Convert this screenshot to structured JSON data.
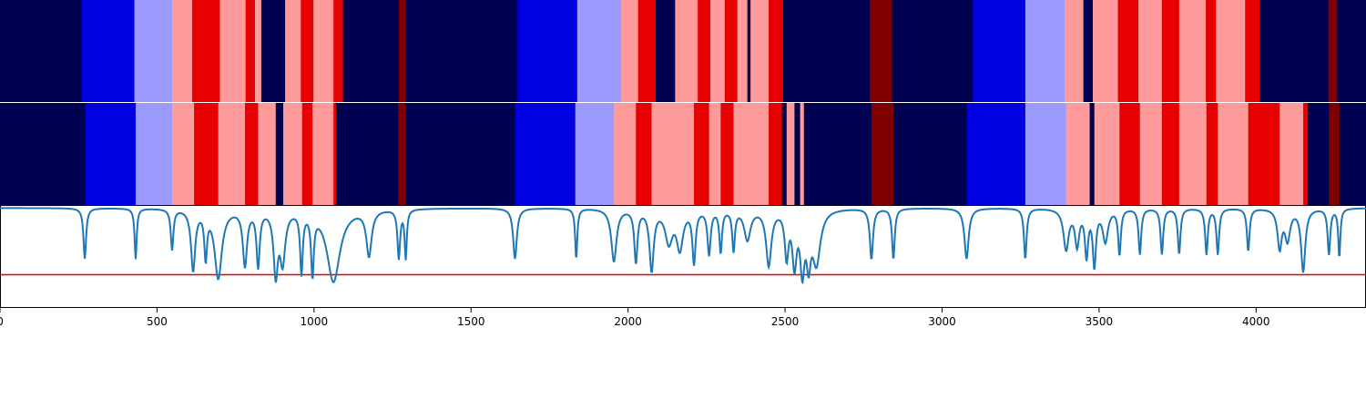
{
  "chart_data": {
    "type": "heatmap",
    "x_range": [
      0,
      4350
    ],
    "x_ticks": [
      0,
      500,
      1000,
      1500,
      2000,
      2500,
      3000,
      3500,
      4000
    ],
    "x_tick_labels": [
      "0",
      "500",
      "1000",
      "1500",
      "2000",
      "2500",
      "3000",
      "3500",
      "4000"
    ],
    "class_colors": [
      "#000050",
      "#0000e0",
      "#9b9bff",
      "#ff9b9b",
      "#e60000",
      "#800000"
    ],
    "rows": [
      {
        "segments": [
          [
            0,
            260,
            0
          ],
          [
            260,
            428,
            1
          ],
          [
            428,
            548,
            2
          ],
          [
            548,
            612,
            3
          ],
          [
            612,
            700,
            4
          ],
          [
            700,
            782,
            3
          ],
          [
            782,
            812,
            4
          ],
          [
            812,
            832,
            3
          ],
          [
            832,
            908,
            0
          ],
          [
            908,
            958,
            3
          ],
          [
            958,
            998,
            4
          ],
          [
            998,
            1062,
            3
          ],
          [
            1062,
            1092,
            4
          ],
          [
            1092,
            1270,
            0
          ],
          [
            1270,
            1292,
            5
          ],
          [
            1292,
            1648,
            0
          ],
          [
            1648,
            1838,
            1
          ],
          [
            1838,
            1978,
            2
          ],
          [
            1978,
            2032,
            3
          ],
          [
            2032,
            2088,
            4
          ],
          [
            2088,
            2150,
            0
          ],
          [
            2150,
            2222,
            3
          ],
          [
            2222,
            2262,
            4
          ],
          [
            2262,
            2308,
            3
          ],
          [
            2308,
            2348,
            4
          ],
          [
            2348,
            2380,
            3
          ],
          [
            2380,
            2390,
            0
          ],
          [
            2390,
            2448,
            3
          ],
          [
            2448,
            2494,
            4
          ],
          [
            2494,
            2770,
            0
          ],
          [
            2770,
            2840,
            5
          ],
          [
            2840,
            3098,
            0
          ],
          [
            3098,
            3265,
            1
          ],
          [
            3265,
            3390,
            2
          ],
          [
            3390,
            3450,
            3
          ],
          [
            3450,
            3480,
            0
          ],
          [
            3480,
            3560,
            3
          ],
          [
            3560,
            3625,
            4
          ],
          [
            3625,
            3700,
            3
          ],
          [
            3700,
            3755,
            4
          ],
          [
            3755,
            3840,
            3
          ],
          [
            3840,
            3872,
            4
          ],
          [
            3872,
            3965,
            3
          ],
          [
            3965,
            4012,
            4
          ],
          [
            4012,
            4230,
            0
          ],
          [
            4230,
            4258,
            5
          ],
          [
            4258,
            4350,
            0
          ]
        ]
      },
      {
        "segments": [
          [
            0,
            272,
            0
          ],
          [
            272,
            432,
            1
          ],
          [
            432,
            548,
            2
          ],
          [
            548,
            618,
            3
          ],
          [
            618,
            695,
            4
          ],
          [
            695,
            780,
            3
          ],
          [
            780,
            822,
            4
          ],
          [
            822,
            878,
            3
          ],
          [
            878,
            902,
            0
          ],
          [
            902,
            962,
            3
          ],
          [
            962,
            995,
            4
          ],
          [
            995,
            1062,
            3
          ],
          [
            1062,
            1070,
            4
          ],
          [
            1070,
            1268,
            0
          ],
          [
            1268,
            1292,
            5
          ],
          [
            1292,
            1640,
            0
          ],
          [
            1640,
            1832,
            1
          ],
          [
            1832,
            1955,
            2
          ],
          [
            1955,
            2025,
            3
          ],
          [
            2025,
            2075,
            4
          ],
          [
            2075,
            2210,
            3
          ],
          [
            2210,
            2258,
            4
          ],
          [
            2258,
            2295,
            3
          ],
          [
            2295,
            2336,
            4
          ],
          [
            2336,
            2448,
            3
          ],
          [
            2448,
            2490,
            4
          ],
          [
            2490,
            2505,
            0
          ],
          [
            2505,
            2530,
            3
          ],
          [
            2530,
            2548,
            0
          ],
          [
            2548,
            2560,
            3
          ],
          [
            2560,
            2775,
            0
          ],
          [
            2775,
            2845,
            5
          ],
          [
            2845,
            3078,
            0
          ],
          [
            3078,
            3265,
            1
          ],
          [
            3265,
            3395,
            2
          ],
          [
            3395,
            3470,
            3
          ],
          [
            3470,
            3485,
            0
          ],
          [
            3485,
            3565,
            3
          ],
          [
            3565,
            3630,
            4
          ],
          [
            3630,
            3700,
            3
          ],
          [
            3700,
            3755,
            4
          ],
          [
            3755,
            3842,
            3
          ],
          [
            3842,
            3878,
            4
          ],
          [
            3878,
            3975,
            3
          ],
          [
            3975,
            4075,
            4
          ],
          [
            4075,
            4150,
            3
          ],
          [
            4150,
            4165,
            4
          ],
          [
            4165,
            4232,
            0
          ],
          [
            4232,
            4265,
            5
          ],
          [
            4265,
            4350,
            0
          ]
        ]
      }
    ],
    "line_series": {
      "color": "#1f77b4",
      "y_range": [
        0,
        1
      ],
      "baseline": 0.98,
      "dips": [
        [
          270,
          0.5,
          5
        ],
        [
          432,
          0.5,
          4
        ],
        [
          548,
          0.4,
          5
        ],
        [
          615,
          0.6,
          8
        ],
        [
          655,
          0.45,
          5
        ],
        [
          695,
          0.68,
          14
        ],
        [
          780,
          0.55,
          8
        ],
        [
          822,
          0.55,
          6
        ],
        [
          878,
          0.62,
          8
        ],
        [
          900,
          0.5,
          10
        ],
        [
          960,
          0.6,
          5
        ],
        [
          995,
          0.6,
          5
        ],
        [
          1062,
          0.72,
          25
        ],
        [
          1175,
          0.45,
          10
        ],
        [
          1270,
          0.48,
          5
        ],
        [
          1292,
          0.48,
          4
        ],
        [
          1640,
          0.5,
          7
        ],
        [
          1835,
          0.5,
          4
        ],
        [
          1955,
          0.52,
          10
        ],
        [
          2025,
          0.52,
          6
        ],
        [
          2075,
          0.6,
          8
        ],
        [
          2130,
          0.32,
          14
        ],
        [
          2165,
          0.38,
          12
        ],
        [
          2210,
          0.52,
          6
        ],
        [
          2258,
          0.44,
          6
        ],
        [
          2295,
          0.42,
          5
        ],
        [
          2336,
          0.4,
          5
        ],
        [
          2380,
          0.3,
          12
        ],
        [
          2448,
          0.55,
          10
        ],
        [
          2505,
          0.45,
          7
        ],
        [
          2530,
          0.52,
          8
        ],
        [
          2555,
          0.56,
          8
        ],
        [
          2575,
          0.45,
          8
        ],
        [
          2600,
          0.52,
          15
        ],
        [
          2775,
          0.5,
          6
        ],
        [
          2845,
          0.5,
          5
        ],
        [
          3078,
          0.5,
          8
        ],
        [
          3265,
          0.5,
          5
        ],
        [
          3395,
          0.4,
          10
        ],
        [
          3430,
          0.35,
          8
        ],
        [
          3460,
          0.45,
          6
        ],
        [
          3485,
          0.55,
          6
        ],
        [
          3520,
          0.32,
          10
        ],
        [
          3565,
          0.45,
          5
        ],
        [
          3630,
          0.45,
          5
        ],
        [
          3700,
          0.45,
          5
        ],
        [
          3755,
          0.45,
          5
        ],
        [
          3842,
          0.45,
          5
        ],
        [
          3878,
          0.45,
          5
        ],
        [
          3975,
          0.42,
          5
        ],
        [
          4075,
          0.38,
          8
        ],
        [
          4100,
          0.3,
          10
        ],
        [
          4150,
          0.62,
          8
        ],
        [
          4232,
          0.45,
          5
        ],
        [
          4265,
          0.48,
          4
        ]
      ]
    },
    "threshold": {
      "value": 0.32,
      "color": "#e00000"
    }
  }
}
